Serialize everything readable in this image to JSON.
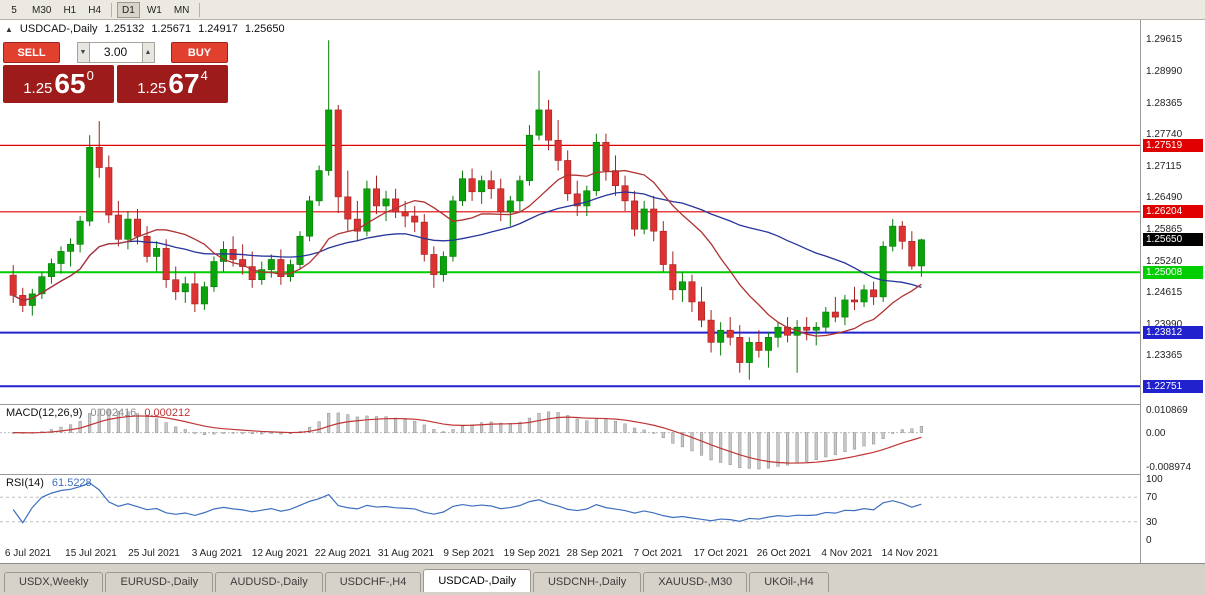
{
  "toolbar": {
    "timeframes": [
      "5",
      "M30",
      "H1",
      "H4",
      "D1",
      "W1",
      "MN"
    ],
    "active": "D1"
  },
  "icons": {
    "collapse_chart_icon": "▲",
    "volume_up_icon": "▲",
    "volume_down_icon": "▼"
  },
  "chart_header": {
    "symbol_period": "USDCAD-,Daily",
    "open": "1.25132",
    "high": "1.25671",
    "low": "1.24917",
    "close": "1.25650"
  },
  "trade_panel": {
    "sell_label": "SELL",
    "buy_label": "BUY",
    "volume": "3.00",
    "sell_price": {
      "base": "1.25",
      "pips": "65",
      "point": "0"
    },
    "buy_price": {
      "base": "1.25",
      "pips": "67",
      "point": "4"
    }
  },
  "price_axis": {
    "labels": [
      "1.29615",
      "1.28990",
      "1.28365",
      "1.27740",
      "1.27115",
      "1.26490",
      "1.25865",
      "1.25240",
      "1.24615",
      "1.23990",
      "1.23365",
      "1.22740"
    ],
    "current": {
      "label": "1.25650",
      "value": 1.2565,
      "bg": "#000000"
    }
  },
  "colors": {
    "bull": "#0ba30b",
    "bull_border": "#067a06",
    "bear": "#dd3232",
    "bear_border": "#a32020",
    "ma_fast": "#b03232",
    "ma_slow": "#26349b",
    "macd_hist_fill": "#c8c8c8",
    "macd_hist_stroke": "#8e8e8e",
    "macd_signal": "#c03535",
    "rsi_line": "#3e6fbf",
    "level_dash": "#bdbdbd",
    "sell_button_bg": "#e2402f",
    "buy_button_bg": "#e2402f",
    "price_box_bg": "#9e1b1b"
  },
  "chart_data": {
    "type": "candlestick",
    "symbol": "USDCAD-",
    "timeframe": "Daily",
    "y_range": [
      1.224,
      1.3
    ],
    "x_labels": [
      "6 Jul 2021",
      "15 Jul 2021",
      "25 Jul 2021",
      "3 Aug 2021",
      "12 Aug 2021",
      "22 Aug 2021",
      "31 Aug 2021",
      "9 Sep 2021",
      "19 Sep 2021",
      "28 Sep 2021",
      "7 Oct 2021",
      "17 Oct 2021",
      "26 Oct 2021",
      "4 Nov 2021",
      "14 Nov 2021"
    ],
    "candles": [
      [
        1.2495,
        1.2515,
        1.244,
        1.2455
      ],
      [
        1.2455,
        1.247,
        1.2422,
        1.2435
      ],
      [
        1.2435,
        1.2468,
        1.2415,
        1.2458
      ],
      [
        1.2458,
        1.2502,
        1.2448,
        1.2492
      ],
      [
        1.2492,
        1.2528,
        1.2478,
        1.2518
      ],
      [
        1.2518,
        1.2552,
        1.2498,
        1.2542
      ],
      [
        1.2542,
        1.2568,
        1.2512,
        1.2556
      ],
      [
        1.2556,
        1.2612,
        1.254,
        1.2602
      ],
      [
        1.2602,
        1.2772,
        1.2592,
        1.2748
      ],
      [
        1.2748,
        1.28,
        1.2688,
        1.2708
      ],
      [
        1.2708,
        1.2732,
        1.2598,
        1.2614
      ],
      [
        1.2614,
        1.2642,
        1.2552,
        1.2566
      ],
      [
        1.2566,
        1.2622,
        1.2546,
        1.2606
      ],
      [
        1.2606,
        1.2626,
        1.2556,
        1.2572
      ],
      [
        1.2572,
        1.2592,
        1.252,
        1.2532
      ],
      [
        1.2532,
        1.2562,
        1.2502,
        1.2548
      ],
      [
        1.2548,
        1.2566,
        1.247,
        1.2486
      ],
      [
        1.2486,
        1.2512,
        1.2446,
        1.2462
      ],
      [
        1.2462,
        1.2492,
        1.244,
        1.2478
      ],
      [
        1.2478,
        1.25,
        1.2422,
        1.2438
      ],
      [
        1.2438,
        1.2482,
        1.2426,
        1.2472
      ],
      [
        1.2472,
        1.2532,
        1.2462,
        1.2522
      ],
      [
        1.2522,
        1.2562,
        1.2502,
        1.2546
      ],
      [
        1.2546,
        1.2572,
        1.2512,
        1.2526
      ],
      [
        1.2526,
        1.2556,
        1.2496,
        1.2512
      ],
      [
        1.2512,
        1.2542,
        1.247,
        1.2486
      ],
      [
        1.2486,
        1.2522,
        1.2476,
        1.2506
      ],
      [
        1.2506,
        1.2536,
        1.249,
        1.2526
      ],
      [
        1.2526,
        1.2546,
        1.2476,
        1.2492
      ],
      [
        1.2492,
        1.2526,
        1.2482,
        1.2516
      ],
      [
        1.2516,
        1.2582,
        1.2506,
        1.2572
      ],
      [
        1.2572,
        1.2652,
        1.2562,
        1.2642
      ],
      [
        1.2642,
        1.2712,
        1.2632,
        1.2702
      ],
      [
        1.2702,
        1.296,
        1.2692,
        1.2822
      ],
      [
        1.2822,
        1.2832,
        1.2618,
        1.265
      ],
      [
        1.265,
        1.2702,
        1.2582,
        1.2606
      ],
      [
        1.2606,
        1.2642,
        1.2562,
        1.2582
      ],
      [
        1.2582,
        1.2682,
        1.2572,
        1.2666
      ],
      [
        1.2666,
        1.2692,
        1.2616,
        1.2632
      ],
      [
        1.2632,
        1.2662,
        1.2602,
        1.2646
      ],
      [
        1.2646,
        1.2666,
        1.2608,
        1.262
      ],
      [
        1.262,
        1.2642,
        1.259,
        1.2612
      ],
      [
        1.2612,
        1.2632,
        1.258,
        1.26
      ],
      [
        1.26,
        1.2616,
        1.2522,
        1.2536
      ],
      [
        1.2536,
        1.2552,
        1.247,
        1.2496
      ],
      [
        1.2496,
        1.2542,
        1.2482,
        1.2532
      ],
      [
        1.2532,
        1.2652,
        1.2522,
        1.2642
      ],
      [
        1.2642,
        1.2702,
        1.2632,
        1.2686
      ],
      [
        1.2686,
        1.2706,
        1.2642,
        1.266
      ],
      [
        1.266,
        1.2692,
        1.2636,
        1.2682
      ],
      [
        1.2682,
        1.2702,
        1.2646,
        1.2666
      ],
      [
        1.2666,
        1.2686,
        1.2602,
        1.262
      ],
      [
        1.262,
        1.2652,
        1.2592,
        1.2642
      ],
      [
        1.2642,
        1.2692,
        1.2622,
        1.2682
      ],
      [
        1.2682,
        1.2792,
        1.2672,
        1.2772
      ],
      [
        1.2772,
        1.29,
        1.2762,
        1.2822
      ],
      [
        1.2822,
        1.2842,
        1.2742,
        1.2762
      ],
      [
        1.2762,
        1.2802,
        1.2702,
        1.2722
      ],
      [
        1.2722,
        1.2742,
        1.2642,
        1.2656
      ],
      [
        1.2656,
        1.2682,
        1.2612,
        1.2632
      ],
      [
        1.2632,
        1.2672,
        1.2612,
        1.2662
      ],
      [
        1.2662,
        1.2775,
        1.2652,
        1.2758
      ],
      [
        1.2758,
        1.2775,
        1.2682,
        1.2702
      ],
      [
        1.2702,
        1.2732,
        1.2652,
        1.2672
      ],
      [
        1.2672,
        1.2692,
        1.2622,
        1.2642
      ],
      [
        1.2642,
        1.2662,
        1.2572,
        1.2586
      ],
      [
        1.2586,
        1.2642,
        1.2576,
        1.2626
      ],
      [
        1.2626,
        1.2652,
        1.2562,
        1.2582
      ],
      [
        1.2582,
        1.2602,
        1.2502,
        1.2516
      ],
      [
        1.2516,
        1.2542,
        1.2446,
        1.2466
      ],
      [
        1.2466,
        1.2502,
        1.2442,
        1.2482
      ],
      [
        1.2482,
        1.2496,
        1.2422,
        1.2442
      ],
      [
        1.2442,
        1.2472,
        1.2392,
        1.2406
      ],
      [
        1.2406,
        1.2426,
        1.2342,
        1.2362
      ],
      [
        1.2362,
        1.2402,
        1.2336,
        1.2386
      ],
      [
        1.2386,
        1.2412,
        1.2356,
        1.2372
      ],
      [
        1.2372,
        1.2396,
        1.2302,
        1.2322
      ],
      [
        1.2322,
        1.2372,
        1.2288,
        1.2362
      ],
      [
        1.2362,
        1.2386,
        1.2332,
        1.2346
      ],
      [
        1.2346,
        1.2382,
        1.2312,
        1.2372
      ],
      [
        1.2372,
        1.2402,
        1.2352,
        1.2392
      ],
      [
        1.2392,
        1.2412,
        1.2362,
        1.2376
      ],
      [
        1.2376,
        1.2406,
        1.2302,
        1.2392
      ],
      [
        1.2392,
        1.2412,
        1.2366,
        1.2386
      ],
      [
        1.2386,
        1.2402,
        1.2356,
        1.2392
      ],
      [
        1.2392,
        1.2432,
        1.2382,
        1.2422
      ],
      [
        1.2422,
        1.2452,
        1.2402,
        1.2412
      ],
      [
        1.2412,
        1.2456,
        1.2396,
        1.2446
      ],
      [
        1.2446,
        1.2472,
        1.2426,
        1.2442
      ],
      [
        1.2442,
        1.2476,
        1.2432,
        1.2466
      ],
      [
        1.2466,
        1.2482,
        1.2436,
        1.2452
      ],
      [
        1.2452,
        1.2562,
        1.2442,
        1.2552
      ],
      [
        1.2552,
        1.2606,
        1.2542,
        1.2592
      ],
      [
        1.2592,
        1.2602,
        1.2546,
        1.2562
      ],
      [
        1.2562,
        1.2582,
        1.2506,
        1.2513
      ],
      [
        1.25132,
        1.25671,
        1.24917,
        1.2565
      ]
    ],
    "overlays": {
      "ma_fast_period": 13,
      "ma_slow_period": 34
    },
    "hlines": [
      {
        "price": 1.27519,
        "label": "1.27519",
        "color": "#e00000",
        "width": 1.2
      },
      {
        "price": 1.26204,
        "label": "1.26204",
        "color": "#e00000",
        "width": 1.2
      },
      {
        "price": 1.25008,
        "label": "1.25008",
        "color": "#00ce00",
        "width": 2
      },
      {
        "price": 1.23812,
        "label": "1.23812",
        "color": "#2121ce",
        "width": 2
      },
      {
        "price": 1.22751,
        "label": "1.22751",
        "color": "#2121ce",
        "width": 2
      }
    ],
    "indicators": [
      {
        "name": "MACD",
        "label": "MACD(12,26,9)",
        "values_text": [
          "0.002416",
          "0.000212"
        ],
        "values_colors": [
          "#8a8a8a",
          "#c03535"
        ],
        "axis_labels": [
          "0.010869",
          "0.00",
          "-0.008974"
        ]
      },
      {
        "name": "RSI",
        "label": "RSI(14)",
        "values_text": [
          "61.5228"
        ],
        "values_colors": [
          "#3e6fbf"
        ],
        "levels": [
          70,
          30
        ],
        "axis_labels": [
          "100",
          "70",
          "30",
          "0"
        ]
      }
    ]
  },
  "tabs": [
    {
      "label": "USDX,Weekly",
      "active": false
    },
    {
      "label": "EURUSD-,Daily",
      "active": false
    },
    {
      "label": "AUDUSD-,Daily",
      "active": false
    },
    {
      "label": "USDCHF-,H4",
      "active": false
    },
    {
      "label": "USDCAD-,Daily",
      "active": true
    },
    {
      "label": "USDCNH-,Daily",
      "active": false
    },
    {
      "label": "XAUUSD-,M30",
      "active": false
    },
    {
      "label": "UKOil-,H4",
      "active": false
    }
  ]
}
